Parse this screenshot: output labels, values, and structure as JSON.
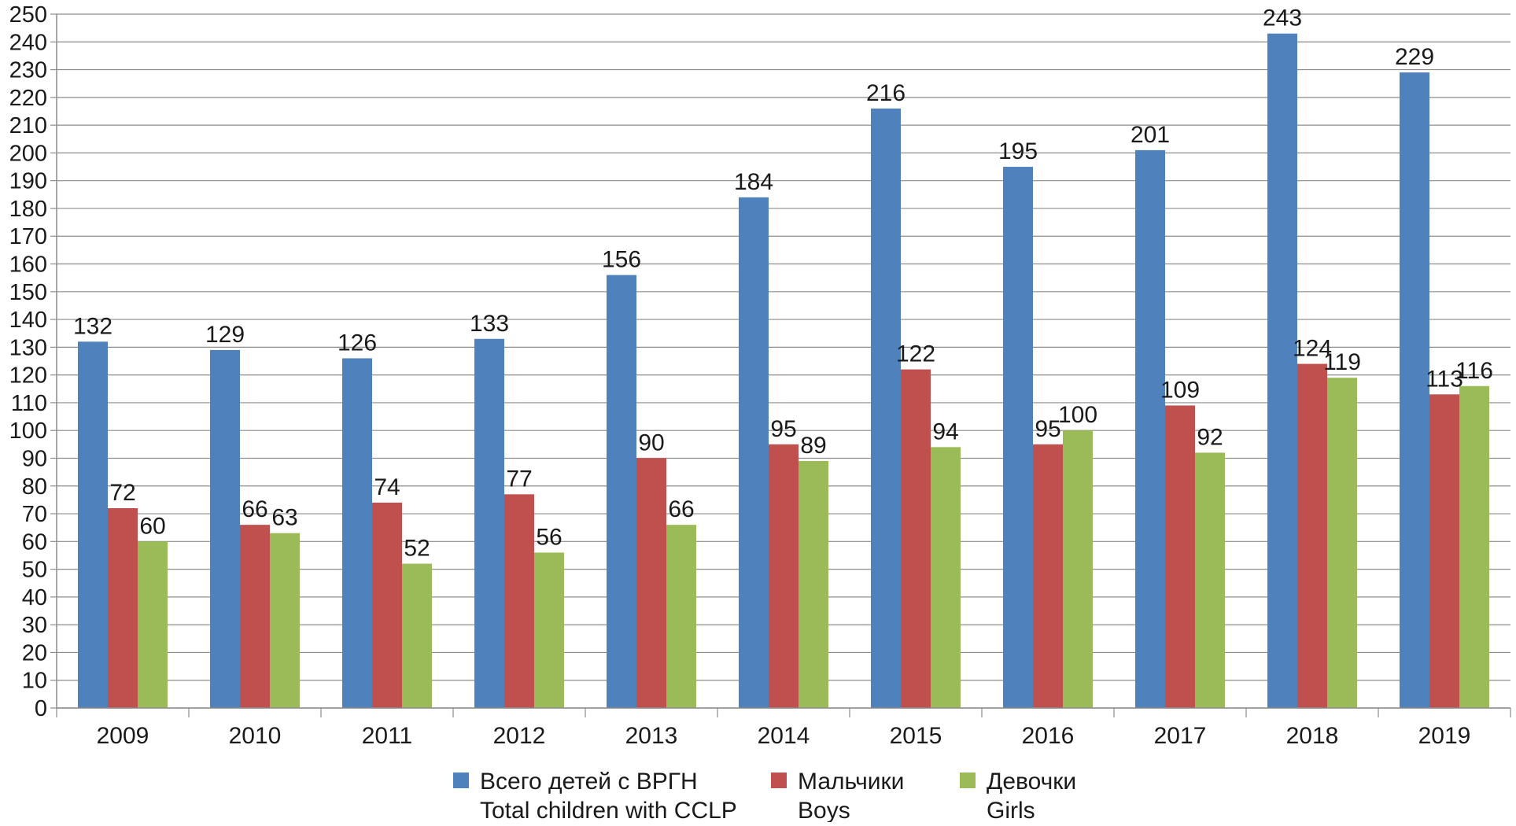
{
  "chart_data": {
    "type": "bar",
    "title": "",
    "xlabel": "",
    "ylabel": "",
    "ylim": [
      0,
      250
    ],
    "ytick_step": 10,
    "grid": true,
    "legend_position": "bottom",
    "categories": [
      "2009",
      "2010",
      "2011",
      "2012",
      "2013",
      "2014",
      "2015",
      "2016",
      "2017",
      "2018",
      "2019"
    ],
    "series": [
      {
        "name": "Всего детей с ВРГН",
        "name_en": "Total children with CCLP",
        "color": "#4F81BD",
        "values": [
          132,
          129,
          126,
          133,
          156,
          184,
          216,
          195,
          201,
          243,
          229
        ]
      },
      {
        "name": "Мальчики",
        "name_en": "Boys",
        "color": "#C0504D",
        "values": [
          72,
          66,
          74,
          77,
          90,
          95,
          122,
          95,
          109,
          124,
          113
        ]
      },
      {
        "name": "Девочки",
        "name_en": "Girls",
        "color": "#9BBB59",
        "values": [
          60,
          63,
          52,
          56,
          66,
          89,
          94,
          100,
          92,
          119,
          116
        ]
      }
    ]
  }
}
